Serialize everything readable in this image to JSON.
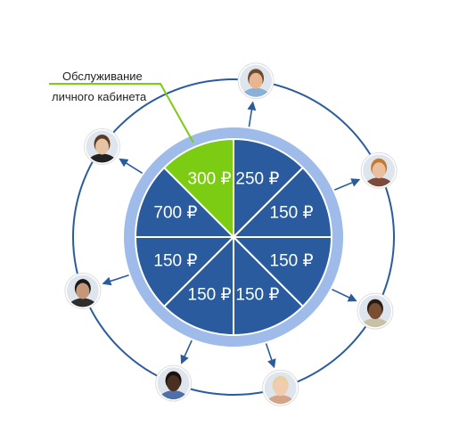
{
  "callout": {
    "line1": "Обслуживание",
    "line2": "личного кабинета"
  },
  "currency_symbol": "₽",
  "colors": {
    "slice": "#2a5b9e",
    "slice_highlight": "#7ccc14",
    "ring": "#9fbbe9",
    "divider": "#ffffff",
    "orbit": "#2a5b9e",
    "arrow": "#2a5b9e",
    "callout_line": "#7ccc14"
  },
  "slices": [
    {
      "amount": "250",
      "highlight": false
    },
    {
      "amount": "150",
      "highlight": false
    },
    {
      "amount": "150",
      "highlight": false
    },
    {
      "amount": "150",
      "highlight": false
    },
    {
      "amount": "150",
      "highlight": false
    },
    {
      "amount": "150",
      "highlight": false
    },
    {
      "amount": "700",
      "highlight": false
    },
    {
      "amount": "300",
      "highlight": true
    }
  ],
  "people": [
    {
      "icon": "person-avatar-icon",
      "skin": "#e8b591",
      "hair": "#6b4a2e",
      "shirt": "#8ab0d8"
    },
    {
      "icon": "person-avatar-icon",
      "skin": "#e9bfa0",
      "hair": "#c47a33",
      "shirt": "#7a4b3a"
    },
    {
      "icon": "person-avatar-icon",
      "skin": "#7a4e32",
      "hair": "#2a1c12",
      "shirt": "#c9c0a8"
    },
    {
      "icon": "person-avatar-icon",
      "skin": "#f1cdb0",
      "hair": "#e8d0a0",
      "shirt": "#d4a488"
    },
    {
      "icon": "person-avatar-icon",
      "skin": "#4a3022",
      "hair": "#1a120c",
      "shirt": "#4f6fa8"
    },
    {
      "icon": "person-avatar-icon",
      "skin": "#c69678",
      "hair": "#1a1a1a",
      "shirt": "#2e2e2e"
    },
    {
      "icon": "person-avatar-icon",
      "skin": "#e7c3a5",
      "hair": "#5a3a24",
      "shirt": "#222222"
    }
  ]
}
